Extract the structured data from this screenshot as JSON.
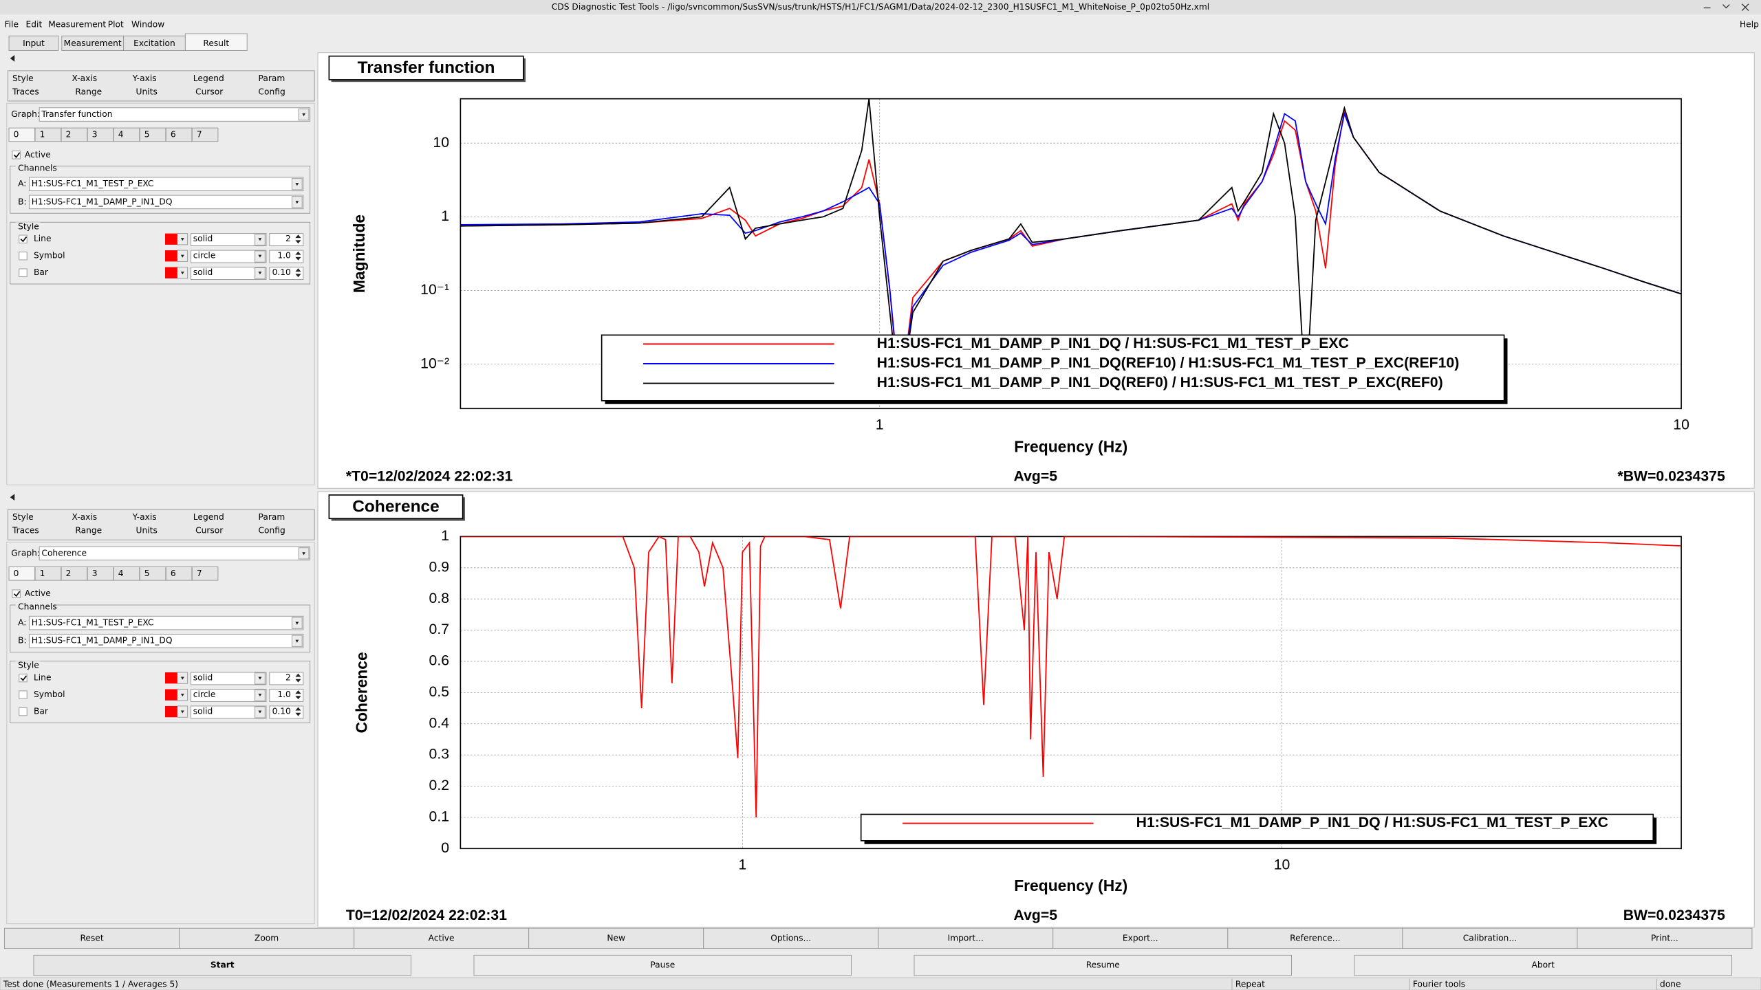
{
  "window": {
    "title": "CDS Diagnostic Test Tools - /ligo/svncommon/SusSVN/sus/trunk/HSTS/H1/FC1/SAGM1/Data/2024-02-12_2300_H1SUSFC1_M1_WhiteNoise_P_0p02to50Hz.xml"
  },
  "menu": [
    "File",
    "Edit",
    "Measurement",
    "Plot",
    "Window"
  ],
  "help": "Help",
  "tabs": [
    "Input",
    "Measurement",
    "Excitation",
    "Result"
  ],
  "active_tab": 3,
  "panels": [
    {
      "tabs": [
        [
          "Style",
          "X-axis",
          "Y-axis",
          "Legend",
          "Param"
        ],
        [
          "Traces",
          "Range",
          "Units",
          "Cursor",
          "Config"
        ]
      ],
      "graph_label": "Graph:",
      "graph": "Transfer function",
      "traces": [
        "0",
        "1",
        "2",
        "3",
        "4",
        "5",
        "6",
        "7"
      ],
      "active": "Active",
      "active_checked": true,
      "channels_label": "Channels",
      "channels": [
        {
          "label": "A:",
          "value": "H1:SUS-FC1_M1_TEST_P_EXC"
        },
        {
          "label": "B:",
          "value": "H1:SUS-FC1_M1_DAMP_P_IN1_DQ"
        }
      ],
      "style_label": "Style",
      "styles": [
        {
          "name": "Line",
          "checked": true,
          "color": "#ff0000",
          "pattern": "solid",
          "size": "2"
        },
        {
          "name": "Symbol",
          "checked": false,
          "color": "#ff0000",
          "pattern": "circle",
          "size": "1.0"
        },
        {
          "name": "Bar",
          "checked": false,
          "color": "#ff0000",
          "pattern": "solid",
          "size": "0.10"
        }
      ]
    },
    {
      "tabs": [
        [
          "Style",
          "X-axis",
          "Y-axis",
          "Legend",
          "Param"
        ],
        [
          "Traces",
          "Range",
          "Units",
          "Cursor",
          "Config"
        ]
      ],
      "graph_label": "Graph:",
      "graph": "Coherence",
      "traces": [
        "0",
        "1",
        "2",
        "3",
        "4",
        "5",
        "6",
        "7"
      ],
      "active": "Active",
      "active_checked": true,
      "channels_label": "Channels",
      "channels": [
        {
          "label": "A:",
          "value": "H1:SUS-FC1_M1_TEST_P_EXC"
        },
        {
          "label": "B:",
          "value": "H1:SUS-FC1_M1_DAMP_P_IN1_DQ"
        }
      ],
      "style_label": "Style",
      "styles": [
        {
          "name": "Line",
          "checked": true,
          "color": "#ff0000",
          "pattern": "solid",
          "size": "2"
        },
        {
          "name": "Symbol",
          "checked": false,
          "color": "#ff0000",
          "pattern": "circle",
          "size": "1.0"
        },
        {
          "name": "Bar",
          "checked": false,
          "color": "#ff0000",
          "pattern": "solid",
          "size": "0.10"
        }
      ]
    }
  ],
  "chart_data": [
    {
      "type": "line",
      "title": "Transfer function",
      "xlabel": "Frequency (Hz)",
      "ylabel": "Magnitude",
      "xscale": "log",
      "yscale": "log",
      "xlim": [
        0.3,
        10
      ],
      "ylim": [
        0.0025,
        40
      ],
      "xticks": [
        1,
        10
      ],
      "yticks": [
        {
          "value": 0.01,
          "label": "10⁻²"
        },
        {
          "value": 0.1,
          "label": "10⁻¹"
        },
        1,
        10
      ],
      "grid": true,
      "legend": "lower center",
      "x": [
        0.3,
        0.4,
        0.5,
        0.6,
        0.65,
        0.68,
        0.7,
        0.75,
        0.8,
        0.85,
        0.9,
        0.95,
        0.97,
        1.0,
        1.03,
        1.06,
        1.1,
        1.2,
        1.3,
        1.45,
        1.5,
        1.55,
        1.7,
        2.0,
        2.5,
        2.75,
        2.8,
        2.85,
        3.0,
        3.1,
        3.2,
        3.3,
        3.4,
        3.5,
        3.6,
        3.7,
        3.8,
        3.9,
        4.2,
        5,
        6,
        7,
        8,
        9,
        10
      ],
      "series": [
        {
          "name": "H1:SUS-FC1_M1_DAMP_P_IN1_DQ / H1:SUS-FC1_M1_TEST_P_EXC",
          "color": "#ff0000",
          "values": [
            0.75,
            0.78,
            0.82,
            0.95,
            1.3,
            0.9,
            0.55,
            0.8,
            0.95,
            1.2,
            1.4,
            2.5,
            6,
            1.5,
            0.1,
            0.003,
            0.08,
            0.25,
            0.35,
            0.5,
            0.65,
            0.4,
            0.5,
            0.65,
            0.9,
            1.5,
            0.9,
            1.5,
            3,
            7,
            20,
            15,
            3,
            1.2,
            0.2,
            5,
            28,
            12,
            4,
            1.2,
            0.55,
            0.32,
            0.2,
            0.13,
            0.09
          ]
        },
        {
          "name": "H1:SUS-FC1_M1_DAMP_P_IN1_DQ(REF10) / H1:SUS-FC1_M1_TEST_P_EXC(REF10)",
          "color": "#0000ff",
          "values": [
            0.78,
            0.8,
            0.85,
            1.1,
            1.05,
            0.6,
            0.65,
            0.85,
            1.0,
            1.2,
            1.6,
            2.2,
            2.5,
            1.5,
            0.1,
            0.004,
            0.06,
            0.22,
            0.33,
            0.48,
            0.6,
            0.42,
            0.5,
            0.65,
            0.9,
            1.3,
            1.0,
            1.4,
            3,
            8,
            25,
            20,
            3,
            1.5,
            0.8,
            6,
            25,
            12,
            4,
            1.2,
            0.55,
            0.32,
            0.2,
            0.13,
            0.09
          ]
        },
        {
          "name": "H1:SUS-FC1_M1_DAMP_P_IN1_DQ(REF0) / H1:SUS-FC1_M1_TEST_P_EXC(REF0)",
          "color": "#000000",
          "values": [
            0.75,
            0.78,
            0.82,
            1.0,
            2.5,
            0.5,
            0.7,
            0.8,
            0.9,
            1.0,
            1.3,
            8,
            40,
            1.0,
            0.05,
            0.003,
            0.05,
            0.25,
            0.35,
            0.5,
            0.8,
            0.45,
            0.5,
            0.65,
            0.9,
            2.5,
            1.2,
            1.6,
            4,
            25,
            10,
            1.0,
            0.003,
            0.9,
            3,
            10,
            30,
            12,
            4,
            1.2,
            0.55,
            0.32,
            0.2,
            0.13,
            0.09
          ]
        }
      ],
      "annotations": [
        "*T0=12/02/2024 22:02:31",
        "Avg=5",
        "*BW=0.0234375"
      ],
      "annotation_color": "#ff0000"
    },
    {
      "type": "line",
      "title": "Coherence",
      "xlabel": "Frequency (Hz)",
      "ylabel": "Coherence",
      "xscale": "log",
      "yscale": "linear",
      "xlim": [
        0.3,
        55
      ],
      "ylim": [
        0,
        1
      ],
      "xticks": [
        1,
        10
      ],
      "yticks": [
        0,
        0.1,
        0.2,
        0.3,
        0.4,
        0.5,
        0.6,
        0.7,
        0.8,
        0.9,
        1
      ],
      "grid": true,
      "legend": "lower right",
      "x": [
        0.3,
        0.5,
        0.6,
        0.63,
        0.65,
        0.67,
        0.7,
        0.72,
        0.74,
        0.76,
        0.8,
        0.83,
        0.85,
        0.88,
        0.92,
        0.96,
        0.98,
        1.0,
        1.03,
        1.06,
        1.08,
        1.1,
        1.3,
        1.45,
        1.52,
        1.58,
        2.0,
        2.7,
        2.8,
        2.9,
        3.2,
        3.33,
        3.38,
        3.42,
        3.5,
        3.61,
        3.7,
        3.83,
        3.95,
        5,
        20,
        40,
        55
      ],
      "series": [
        {
          "name": "H1:SUS-FC1_M1_DAMP_P_IN1_DQ / H1:SUS-FC1_M1_TEST_P_EXC",
          "color": "#ff0000",
          "values": [
            1,
            1,
            1,
            0.9,
            0.45,
            0.95,
            1,
            0.99,
            0.53,
            1,
            1,
            0.95,
            0.84,
            0.98,
            0.9,
            0.5,
            0.29,
            0.95,
            0.98,
            0.1,
            0.97,
            1,
            1,
            0.99,
            0.77,
            1,
            1,
            1,
            0.46,
            1,
            1,
            0.7,
            1,
            0.35,
            0.95,
            0.23,
            0.95,
            0.8,
            1,
            1,
            0.995,
            0.98,
            0.97
          ]
        }
      ],
      "annotations": [
        "T0=12/02/2024 22:02:31",
        "Avg=5",
        "BW=0.0234375"
      ],
      "annotation_color": "#000000"
    }
  ],
  "buttons": [
    "Reset",
    "Zoom",
    "Active",
    "New",
    "Options...",
    "Import...",
    "Export...",
    "Reference...",
    "Calibration...",
    "Print..."
  ],
  "run_buttons": [
    "Start",
    "Pause",
    "Resume",
    "Abort"
  ],
  "status": [
    "Test done (Measurements 1 / Averages 5)",
    "Repeat",
    "Fourier tools",
    "done"
  ]
}
